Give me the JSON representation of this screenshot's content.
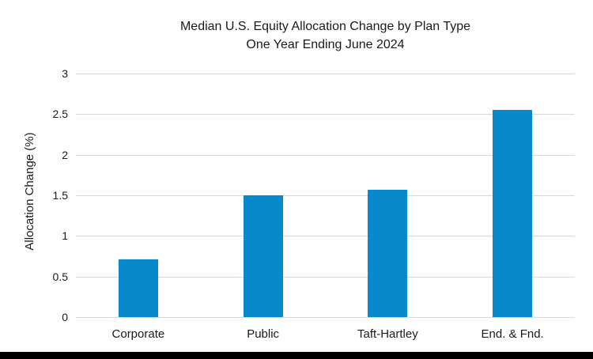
{
  "page": {
    "background_color": "#ffffff",
    "footer_bar_color": "#000000"
  },
  "chart_data": {
    "type": "bar",
    "title": "Median U.S. Equity Allocation Change by Plan Type",
    "subtitle": "One Year Ending June 2024",
    "xlabel": "",
    "ylabel": "Allocation Change (%)",
    "categories": [
      "Corporate",
      "Public",
      "Taft-Hartley",
      "End. & Fnd."
    ],
    "values": [
      0.71,
      1.5,
      1.57,
      2.55
    ],
    "ylim": [
      0,
      3
    ],
    "yticks": [
      0,
      0.5,
      1,
      1.5,
      2,
      2.5,
      3
    ],
    "ytick_labels": [
      "0",
      "0.5",
      "1",
      "1.5",
      "2",
      "2.5",
      "3"
    ],
    "grid": "horizontal",
    "legend": "none",
    "bar_color": "#0789cb",
    "gridline_color": "#d9d9d9",
    "text_color": "#1a1a1a"
  }
}
